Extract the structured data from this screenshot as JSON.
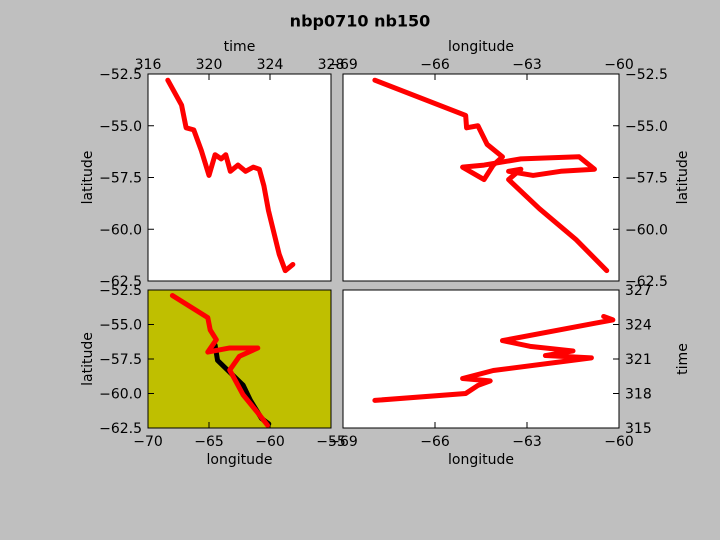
{
  "title": "nbp0710 nb150",
  "chart_data": [
    {
      "type": "line",
      "xlabel": "time",
      "ylabel": "latitude",
      "x_axis_position": "top",
      "y_axis_position": "left",
      "background": "#ffffff",
      "xlim": [
        316,
        328
      ],
      "xticks": [
        316,
        320,
        324,
        328
      ],
      "ylim": [
        -62.5,
        -52.5
      ],
      "yticks": [
        {
          "value": -52.5,
          "label": "−52.5"
        },
        {
          "value": -55,
          "label": "−55.0"
        },
        {
          "value": -57.5,
          "label": "−57.5"
        },
        {
          "value": -60,
          "label": "−60.0"
        },
        {
          "value": -62.5,
          "label": "−62.5"
        }
      ],
      "series": [
        {
          "color": "#ff0000",
          "x": [
            317.3,
            318.2,
            318.5,
            319.0,
            319.5,
            320.0,
            320.4,
            320.8,
            321.1,
            321.4,
            321.9,
            322.4,
            322.9,
            323.3,
            323.6,
            323.9,
            324.3,
            324.6,
            325.0,
            325.5
          ],
          "values": [
            -52.8,
            -54.0,
            -55.1,
            -55.2,
            -56.2,
            -57.4,
            -56.4,
            -56.6,
            -56.4,
            -57.2,
            -56.9,
            -57.2,
            -57.0,
            -57.1,
            -57.9,
            -59.1,
            -60.3,
            -61.2,
            -62.0,
            -61.7
          ]
        }
      ]
    },
    {
      "type": "line",
      "xlabel": "longitude",
      "ylabel": "latitude",
      "x_axis_position": "top",
      "y_axis_position": "right",
      "background": "#ffffff",
      "xlim": [
        -69,
        -60
      ],
      "xticks": [
        {
          "value": -69,
          "label": "−69"
        },
        {
          "value": -66,
          "label": "−66"
        },
        {
          "value": -63,
          "label": "−63"
        },
        {
          "value": -60,
          "label": "−60"
        }
      ],
      "ylim": [
        -62.5,
        -52.5
      ],
      "yticks": [
        {
          "value": -52.5,
          "label": "−52.5"
        },
        {
          "value": -55,
          "label": "−55.0"
        },
        {
          "value": -57.5,
          "label": "−57.5"
        },
        {
          "value": -60,
          "label": "−60.0"
        },
        {
          "value": -62.5,
          "label": "−62.5"
        }
      ],
      "series": [
        {
          "color": "#ff0000",
          "x": [
            -67.96,
            -65.0,
            -64.97,
            -64.6,
            -64.3,
            -63.8,
            -64.1,
            -64.4,
            -65.1,
            -64.4,
            -63.2,
            -61.3,
            -60.8,
            -61.9,
            -62.8,
            -63.6,
            -63.2,
            -63.6,
            -62.6,
            -61.4,
            -60.4
          ],
          "values": [
            -52.8,
            -54.5,
            -55.1,
            -55.0,
            -55.9,
            -56.5,
            -56.9,
            -57.6,
            -57.0,
            -56.9,
            -56.6,
            -56.5,
            -57.1,
            -57.2,
            -57.4,
            -57.2,
            -57.1,
            -57.6,
            -59.0,
            -60.5,
            -62.0
          ]
        }
      ]
    },
    {
      "type": "line",
      "xlabel": "longitude",
      "ylabel": "latitude",
      "x_axis_position": "bottom",
      "y_axis_position": "left",
      "background": "#bfbf00",
      "xlim": [
        -70,
        -55
      ],
      "xticks": [
        {
          "value": -70,
          "label": "−70"
        },
        {
          "value": -65,
          "label": "−65"
        },
        {
          "value": -60,
          "label": "−60"
        },
        {
          "value": -55,
          "label": "−55"
        }
      ],
      "ylim": [
        -62.5,
        -52.5
      ],
      "yticks": [
        {
          "value": -52.5,
          "label": "−52.5"
        },
        {
          "value": -55,
          "label": "−55.0"
        },
        {
          "value": -57.5,
          "label": "−57.5"
        },
        {
          "value": -60,
          "label": "−60.0"
        },
        {
          "value": -62.5,
          "label": "−62.5"
        }
      ],
      "series": [
        {
          "color": "#000000",
          "x": [
            -64.5,
            -64.3,
            -62.2,
            -61.6,
            -60.7,
            -60.1
          ],
          "values": [
            -56.5,
            -57.6,
            -59.4,
            -60.5,
            -61.8,
            -62.2
          ]
        },
        {
          "color": "#ff0000",
          "x": [
            -68.0,
            -65.1,
            -64.9,
            -64.4,
            -65.1,
            -63.3,
            -61.0,
            -62.5,
            -63.3,
            -62.2,
            -61.0,
            -60.2
          ],
          "values": [
            -52.9,
            -54.5,
            -55.4,
            -56.1,
            -57.0,
            -56.7,
            -56.7,
            -57.3,
            -58.3,
            -60.1,
            -61.4,
            -62.3
          ]
        }
      ]
    },
    {
      "type": "line",
      "xlabel": "longitude",
      "ylabel": "time",
      "x_axis_position": "bottom",
      "y_axis_position": "right",
      "background": "#ffffff",
      "xlim": [
        -69,
        -60
      ],
      "xticks": [
        {
          "value": -69,
          "label": "−69"
        },
        {
          "value": -66,
          "label": "−66"
        },
        {
          "value": -63,
          "label": "−63"
        },
        {
          "value": -60,
          "label": "−60"
        }
      ],
      "ylim": [
        315,
        327
      ],
      "yticks": [
        315,
        318,
        321,
        324,
        327
      ],
      "series": [
        {
          "color": "#ff0000",
          "x": [
            -67.96,
            -65.0,
            -64.6,
            -64.2,
            -65.1,
            -64.1,
            -60.9,
            -62.4,
            -61.5,
            -62.9,
            -63.8,
            -60.8,
            -60.2,
            -60.5
          ],
          "values": [
            317.4,
            318.0,
            318.7,
            319.1,
            319.3,
            320.0,
            321.1,
            321.3,
            321.7,
            322.1,
            322.6,
            324.1,
            324.4,
            324.7
          ]
        }
      ]
    }
  ]
}
